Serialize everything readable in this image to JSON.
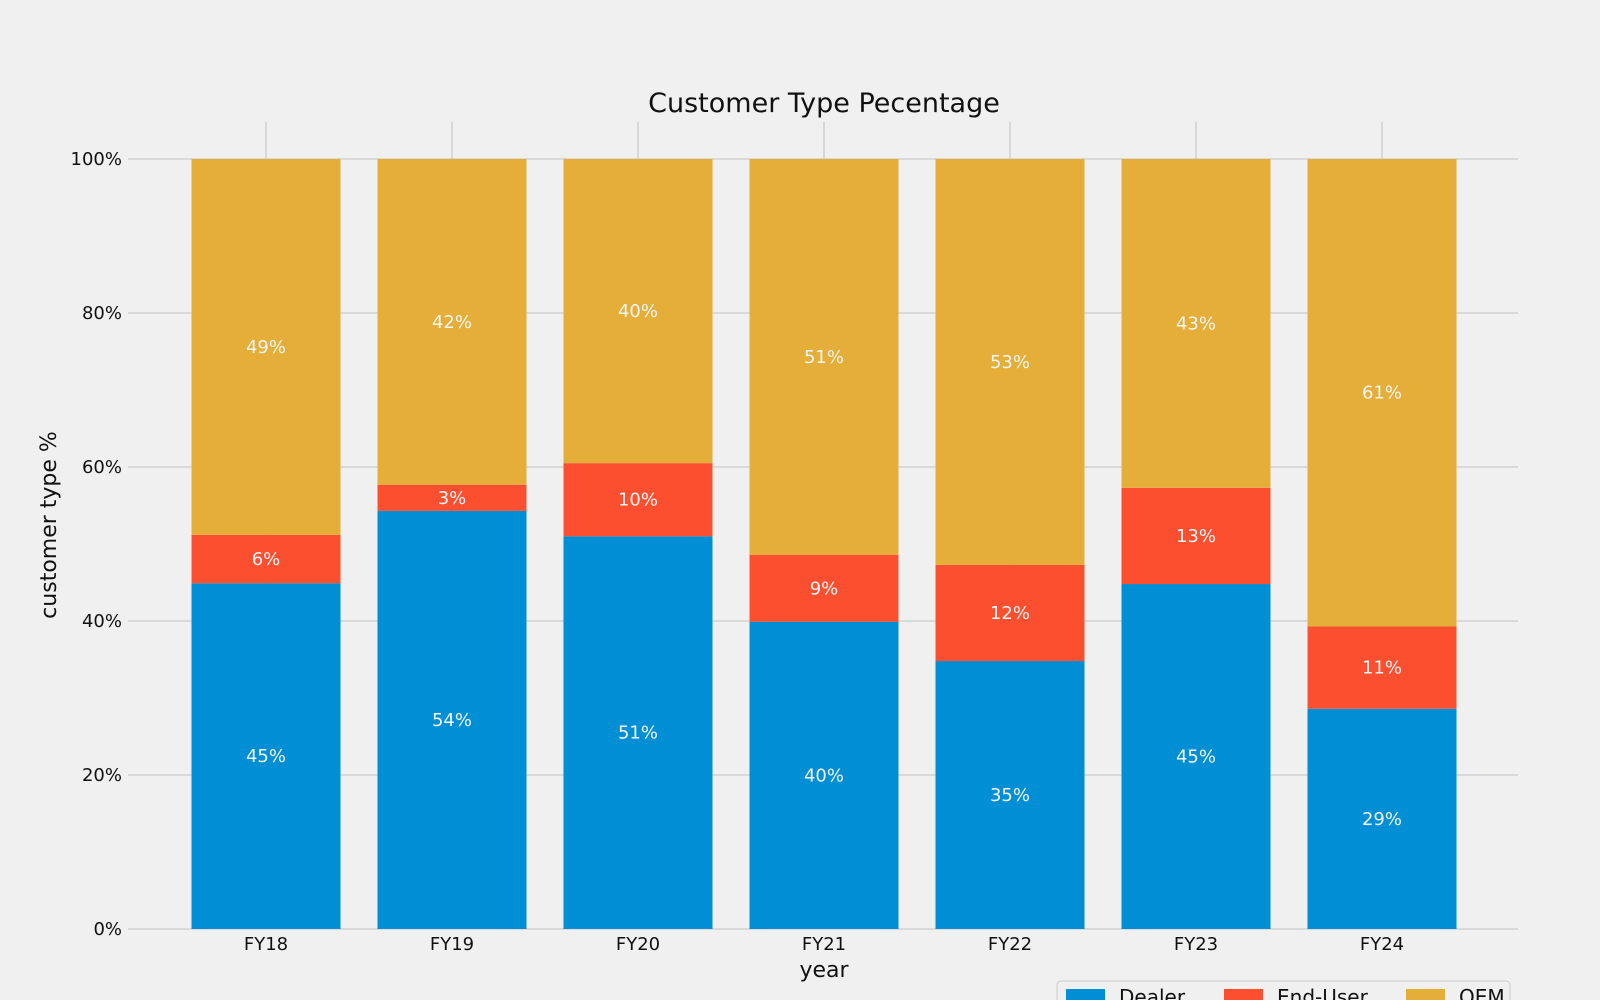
{
  "chart_data": {
    "type": "bar",
    "stacked": true,
    "title": "Customer Type Pecentage",
    "xlabel": "year",
    "ylabel": "customer type %",
    "categories": [
      "FY18",
      "FY19",
      "FY20",
      "FY21",
      "FY22",
      "FY23",
      "FY24"
    ],
    "series": [
      {
        "name": "Dealer",
        "color": "#008fd5",
        "values": [
          44.9,
          54.3,
          51.0,
          39.9,
          34.8,
          44.8,
          28.6
        ],
        "labels": [
          "45%",
          "54%",
          "51%",
          "40%",
          "35%",
          "45%",
          "29%"
        ]
      },
      {
        "name": "End-User",
        "color": "#fc4f30",
        "values": [
          6.3,
          3.4,
          9.5,
          8.7,
          12.5,
          12.5,
          10.7
        ],
        "labels": [
          "6%",
          "3%",
          "10%",
          "9%",
          "12%",
          "13%",
          "11%"
        ]
      },
      {
        "name": "OEM",
        "color": "#e5ae38",
        "values": [
          48.8,
          42.3,
          39.5,
          51.4,
          52.7,
          42.7,
          60.7
        ],
        "labels": [
          "49%",
          "42%",
          "40%",
          "51%",
          "53%",
          "43%",
          "61%"
        ]
      }
    ],
    "ylim": [
      0,
      105
    ],
    "yticks": [
      0,
      20,
      40,
      60,
      80,
      100
    ],
    "ytick_labels": [
      "0%",
      "20%",
      "40%",
      "60%",
      "80%",
      "100%"
    ],
    "grid": true,
    "legend": "bottom-right"
  }
}
